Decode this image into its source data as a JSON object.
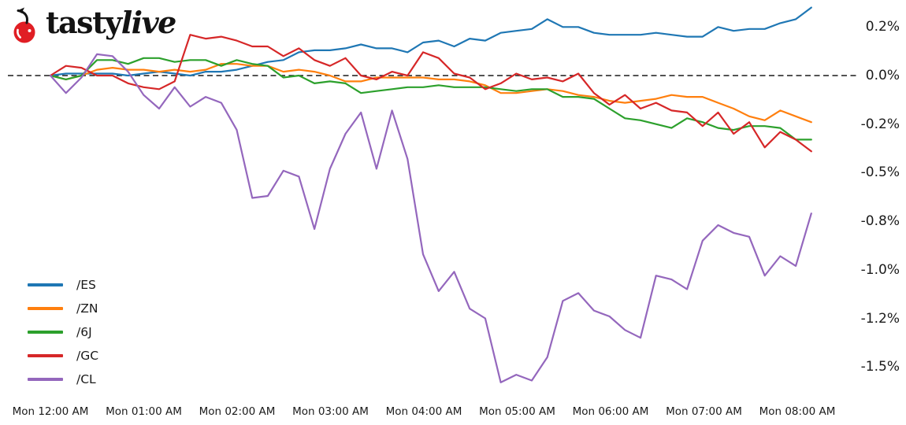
{
  "logo": {
    "brand_first": "tasty",
    "brand_second": "live",
    "cherry_color": "#e01e24",
    "text_color": "#131313"
  },
  "chart_data": {
    "type": "line",
    "title": "",
    "xlabel": "",
    "ylabel": "",
    "grid": false,
    "legend_position": "lower left",
    "zero_line_style": "dashed-black",
    "ylim": [
      -1.64,
      0.37
    ],
    "x_start_label": "Mon 12:00 AM",
    "x_end_label": "Mon 08:10 AM",
    "x_interval_minutes": 10,
    "n_points": 50,
    "x_tick_labels": [
      "Mon 12:00 AM",
      "Mon 01:00 AM",
      "Mon 02:00 AM",
      "Mon 03:00 AM",
      "Mon 04:00 AM",
      "Mon 05:00 AM",
      "Mon 06:00 AM",
      "Mon 07:00 AM",
      "Mon 08:00 AM"
    ],
    "y_ticks": [
      {
        "label": "0.2%",
        "value": 0.25
      },
      {
        "label": "0.0%",
        "value": 0.0
      },
      {
        "label": "-0.2%",
        "value": -0.25
      },
      {
        "label": "-0.5%",
        "value": -0.5
      },
      {
        "label": "-0.8%",
        "value": -0.75
      },
      {
        "label": "-1.0%",
        "value": -1.0
      },
      {
        "label": "-1.2%",
        "value": -1.25
      },
      {
        "label": "-1.5%",
        "value": -1.5
      }
    ],
    "series": [
      {
        "name": "/ES",
        "color": "#1f77b4",
        "values": [
          0.0,
          0.01,
          0.01,
          0.01,
          0.01,
          0.0,
          0.01,
          0.02,
          0.01,
          0.0,
          0.02,
          0.02,
          0.03,
          0.05,
          0.07,
          0.08,
          0.12,
          0.13,
          0.13,
          0.14,
          0.16,
          0.14,
          0.14,
          0.12,
          0.17,
          0.18,
          0.15,
          0.19,
          0.18,
          0.22,
          0.23,
          0.24,
          0.29,
          0.25,
          0.25,
          0.22,
          0.21,
          0.21,
          0.21,
          0.22,
          0.21,
          0.2,
          0.2,
          0.25,
          0.23,
          0.24,
          0.24,
          0.27,
          0.29,
          0.35
        ]
      },
      {
        "name": "/ZN",
        "color": "#ff7f0e",
        "values": [
          0.0,
          -0.02,
          0.0,
          0.03,
          0.04,
          0.03,
          0.03,
          0.02,
          0.03,
          0.02,
          0.03,
          0.06,
          0.06,
          0.05,
          0.05,
          0.02,
          0.03,
          0.02,
          0.0,
          -0.03,
          -0.03,
          -0.01,
          -0.01,
          -0.01,
          -0.01,
          -0.02,
          -0.02,
          -0.03,
          -0.05,
          -0.09,
          -0.09,
          -0.08,
          -0.07,
          -0.08,
          -0.1,
          -0.11,
          -0.13,
          -0.14,
          -0.13,
          -0.12,
          -0.1,
          -0.11,
          -0.11,
          -0.14,
          -0.17,
          -0.21,
          -0.23,
          -0.18,
          -0.21,
          -0.24
        ]
      },
      {
        "name": "/6J",
        "color": "#2ca02c",
        "values": [
          0.0,
          -0.02,
          0.0,
          0.08,
          0.08,
          0.06,
          0.09,
          0.09,
          0.07,
          0.08,
          0.08,
          0.05,
          0.08,
          0.06,
          0.05,
          -0.01,
          0.0,
          -0.04,
          -0.03,
          -0.04,
          -0.09,
          -0.08,
          -0.07,
          -0.06,
          -0.06,
          -0.05,
          -0.06,
          -0.06,
          -0.06,
          -0.07,
          -0.08,
          -0.07,
          -0.07,
          -0.11,
          -0.11,
          -0.12,
          -0.17,
          -0.22,
          -0.23,
          -0.25,
          -0.27,
          -0.22,
          -0.24,
          -0.27,
          -0.28,
          -0.26,
          -0.26,
          -0.27,
          -0.33,
          -0.33
        ]
      },
      {
        "name": "/GC",
        "color": "#d62728",
        "values": [
          0.0,
          0.05,
          0.04,
          0.0,
          0.0,
          -0.04,
          -0.06,
          -0.07,
          -0.03,
          0.21,
          0.19,
          0.2,
          0.18,
          0.15,
          0.15,
          0.1,
          0.14,
          0.08,
          0.05,
          0.09,
          0.0,
          -0.02,
          0.02,
          0.0,
          0.12,
          0.09,
          0.01,
          -0.01,
          -0.07,
          -0.04,
          0.01,
          -0.02,
          -0.01,
          -0.03,
          0.01,
          -0.09,
          -0.15,
          -0.1,
          -0.17,
          -0.14,
          -0.18,
          -0.19,
          -0.26,
          -0.19,
          -0.3,
          -0.24,
          -0.37,
          -0.29,
          -0.33,
          -0.39
        ]
      },
      {
        "name": "/CL",
        "color": "#9467bd",
        "values": [
          0.0,
          -0.09,
          -0.01,
          0.11,
          0.1,
          0.02,
          -0.1,
          -0.17,
          -0.06,
          -0.16,
          -0.11,
          -0.14,
          -0.28,
          -0.63,
          -0.62,
          -0.49,
          -0.52,
          -0.79,
          -0.48,
          -0.3,
          -0.19,
          -0.48,
          -0.18,
          -0.43,
          -0.92,
          -1.11,
          -1.01,
          -1.2,
          -1.25,
          -1.58,
          -1.54,
          -1.57,
          -1.45,
          -1.16,
          -1.12,
          -1.21,
          -1.24,
          -1.31,
          -1.35,
          -1.03,
          -1.05,
          -1.1,
          -0.85,
          -0.77,
          -0.81,
          -0.83,
          -1.03,
          -0.93,
          -0.98,
          -0.71
        ]
      }
    ]
  }
}
